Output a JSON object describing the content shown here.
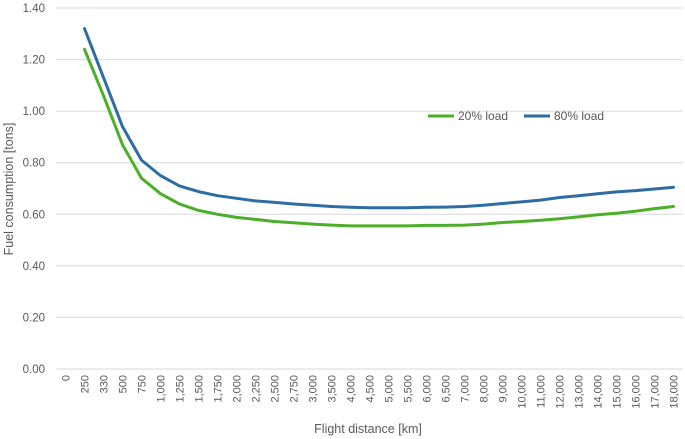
{
  "chart_data": {
    "type": "line",
    "xlabel": "Flight distance [km]",
    "ylabel": "Fuel consumption [tons]",
    "ylim": [
      0,
      1.4
    ],
    "yticks": [
      "0.00",
      "0.20",
      "0.40",
      "0.60",
      "0.80",
      "1.00",
      "1.20",
      "1.40"
    ],
    "grid": true,
    "legend_position": "upper-right",
    "categories": [
      "0",
      "250",
      "330",
      "500",
      "750",
      "1,000",
      "1,250",
      "1,500",
      "1,750",
      "2,000",
      "2,250",
      "2,500",
      "2,750",
      "3,000",
      "3,500",
      "4,000",
      "4,500",
      "5,000",
      "5,500",
      "6,000",
      "6,500",
      "7,000",
      "8,000",
      "9,000",
      "10,000",
      "11,000",
      "12,000",
      "13,000",
      "14,000",
      "15,000",
      "16,000",
      "17,000",
      "18,000"
    ],
    "series": [
      {
        "name": "20% load",
        "color": "#4caf2a",
        "values": [
          null,
          1.24,
          1.06,
          0.87,
          0.74,
          0.68,
          0.64,
          0.615,
          0.6,
          0.588,
          0.58,
          0.572,
          0.567,
          0.562,
          0.558,
          0.555,
          0.555,
          0.555,
          0.555,
          0.557,
          0.557,
          0.558,
          0.562,
          0.568,
          0.572,
          0.577,
          0.583,
          0.59,
          0.598,
          0.604,
          0.612,
          0.622,
          0.63
        ]
      },
      {
        "name": "80% load",
        "color": "#2e6da4",
        "values": [
          null,
          1.32,
          1.13,
          0.94,
          0.81,
          0.75,
          0.71,
          0.688,
          0.672,
          0.662,
          0.652,
          0.646,
          0.64,
          0.635,
          0.63,
          0.627,
          0.625,
          0.625,
          0.625,
          0.627,
          0.628,
          0.63,
          0.635,
          0.642,
          0.648,
          0.655,
          0.665,
          0.672,
          0.68,
          0.687,
          0.692,
          0.698,
          0.705
        ]
      }
    ]
  }
}
